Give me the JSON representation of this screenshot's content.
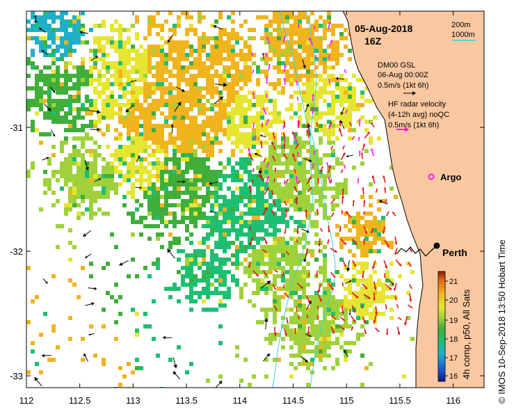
{
  "map": {
    "date": "05-Aug-2018",
    "hour": "16Z",
    "scale_bar": {
      "short": "200m",
      "long": "1000m"
    },
    "x_ticks": [
      "112",
      "112.5",
      "113",
      "113.5",
      "114",
      "114.5",
      "115",
      "115.5",
      "116"
    ],
    "y_ticks": [
      "-31",
      "-32",
      "-33"
    ],
    "legend": {
      "glider": {
        "line1": "DM00 GSL",
        "line2": "06-Aug 00:00Z",
        "speed": "0.5m/s (1kt 6h)"
      },
      "hf_radar": {
        "line1": "HF radar velocity",
        "line2": "(4-12h avg) noQC",
        "speed": "0.5m/s (1kt 6h)"
      },
      "argo": "Argo"
    },
    "places": {
      "perth": "Perth",
      "corner_label": "1"
    },
    "colorbar": {
      "title": "4h comp, p50, All Sats",
      "ticks": [
        "21",
        "20",
        "19",
        "18",
        "17",
        "16"
      ],
      "colors": [
        "#0a1a8a",
        "#1b5fd8",
        "#1fb0c8",
        "#1fbf73",
        "#3fae3a",
        "#9fd23a",
        "#e6e632",
        "#f0b41e",
        "#e06a16",
        "#8b1a0a"
      ]
    },
    "credit": "© IMOS 10-Sep-2018 13:50 Hobart Time",
    "colors": {
      "land": "#fac8a0",
      "contour": "#32d2e6",
      "hf_arrow": "#e61414",
      "glider_arrow": "#ff14ff",
      "model_arrow": "#000000",
      "argo": "#ff14ff"
    }
  }
}
